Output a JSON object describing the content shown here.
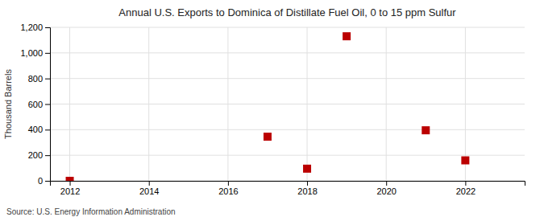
{
  "chart_data": {
    "type": "scatter",
    "title": "Annual U.S. Exports to Dominica of Distillate Fuel Oil, 0 to 15 ppm Sulfur",
    "ylabel": "Thousand Barrels",
    "source": "Source: U.S. Energy Information Administration",
    "x": [
      2012,
      2017,
      2018,
      2019,
      2021,
      2022
    ],
    "values": [
      0,
      345,
      95,
      1130,
      395,
      160
    ],
    "color": "#bb0000",
    "marker": "square",
    "xlim": [
      2011.5,
      2023.5
    ],
    "xticks": [
      2012,
      2014,
      2016,
      2018,
      2020,
      2022
    ],
    "ylim": [
      0,
      1200
    ],
    "yticks": [
      0,
      200,
      400,
      600,
      {
        "value": 800,
        "label": "800"
      },
      {
        "value": 1000,
        "label": "1,000"
      },
      {
        "value": 1200,
        "label": "1,200"
      }
    ],
    "grid": true
  }
}
